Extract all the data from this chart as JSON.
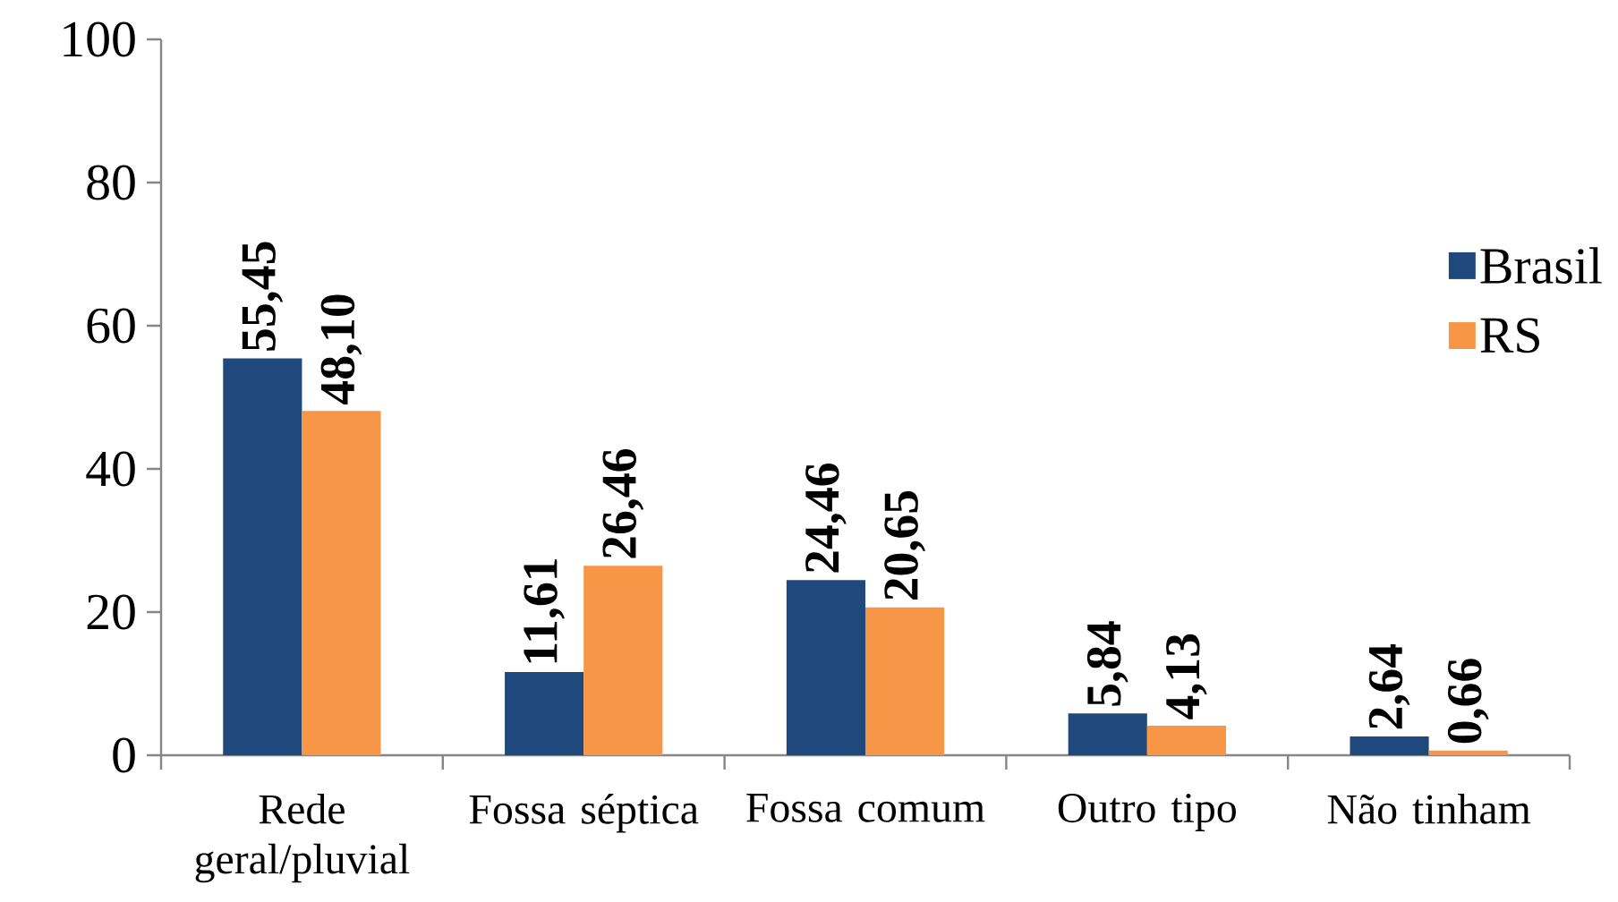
{
  "chart_data": {
    "type": "bar",
    "categories": [
      "Rede geral/pluvial",
      "Fossa séptica",
      "Fossa comum",
      "Outro tipo",
      "Não tinham"
    ],
    "series": [
      {
        "name": "Brasil",
        "color": "#1f497d",
        "values": [
          55.45,
          11.61,
          24.46,
          5.84,
          2.64
        ],
        "value_labels": [
          "55,45",
          "11,61",
          "24,46",
          "5,84",
          "2,64"
        ]
      },
      {
        "name": "RS",
        "color": "#f79646",
        "values": [
          48.1,
          26.46,
          20.65,
          4.13,
          0.66
        ],
        "value_labels": [
          "48,10",
          "26,46",
          "20,65",
          "4,13",
          "0,66"
        ]
      }
    ],
    "ylim": [
      0,
      100
    ],
    "yticks": [
      0,
      20,
      40,
      60,
      80,
      100
    ],
    "legend": "top right"
  }
}
